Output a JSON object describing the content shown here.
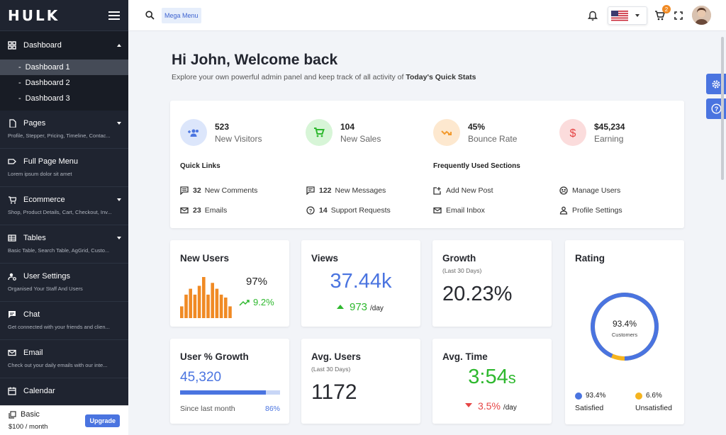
{
  "brand": {
    "logo": "HULK"
  },
  "sidebar": {
    "dashboard": {
      "label": "Dashboard",
      "items": [
        "Dashboard 1",
        "Dashboard 2",
        "Dashboard 3"
      ],
      "dash": "-"
    },
    "sections": [
      {
        "label": "Pages",
        "desc": "Profile, Stepper, Pricing, Timeline, Contac...",
        "icon": "page-icon",
        "caret": true
      },
      {
        "label": "Full Page Menu",
        "desc": "Lorem ipsum dolor sit amet",
        "icon": "label-icon",
        "caret": false
      },
      {
        "label": "Ecommerce",
        "desc": "Shop, Product Details, Cart, Checkout, Inv...",
        "icon": "cart-icon",
        "caret": true
      },
      {
        "label": "Tables",
        "desc": "Basic Table, Search Table, AgGrid, Custo...",
        "icon": "table-icon",
        "caret": true
      },
      {
        "label": "User Settings",
        "desc": "Organised Your Staff And Users",
        "icon": "user-settings-icon",
        "caret": false
      },
      {
        "label": "Chat",
        "desc": "Get connected with your friends and clien...",
        "icon": "chat-icon",
        "caret": false
      },
      {
        "label": "Email",
        "desc": "Check out your daily emails with our inte...",
        "icon": "email-icon",
        "caret": false
      },
      {
        "label": "Calendar",
        "desc": "",
        "icon": "calendar-icon",
        "caret": false
      }
    ],
    "plan": {
      "name": "Basic",
      "price": "$100 / month",
      "upgrade": "Upgrade"
    }
  },
  "header": {
    "mega_menu": "Mega Menu",
    "cart_badge": "2",
    "language_flag": "us-flag-icon"
  },
  "welcome": {
    "title": "Hi John, Welcome back",
    "subtitle": "Explore your own powerful admin panel and keep track of all activity of ",
    "subtitle_bold": "Today's Quick Stats"
  },
  "stats": [
    {
      "value": "523",
      "label": "New Visitors",
      "icon": "group-add-icon",
      "color": "#4a74e0",
      "bg": "#dce6fb"
    },
    {
      "value": "104",
      "label": "New Sales",
      "icon": "cart-icon",
      "color": "#2eb82e",
      "bg": "#d7f5d7"
    },
    {
      "value": "45%",
      "label": "Bounce Rate",
      "icon": "trend-icon",
      "color": "#f29a2e",
      "bg": "#fde8cf"
    },
    {
      "value": "$45,234",
      "label": "Earning",
      "icon": "dollar-icon",
      "color": "#e64545",
      "bg": "#fbdcdc"
    }
  ],
  "quick_links": {
    "title": "Quick Links",
    "items": [
      {
        "count": "32",
        "label": "New Comments",
        "icon": "comment-icon"
      },
      {
        "count": "122",
        "label": "New Messages",
        "icon": "message-icon"
      },
      {
        "count": "23",
        "label": "Emails",
        "icon": "email-icon"
      },
      {
        "count": "14",
        "label": "Support Requests",
        "icon": "help-icon"
      }
    ]
  },
  "frequent": {
    "title": "Frequently Used Sections",
    "items": [
      {
        "label": "Add New Post",
        "icon": "add-post-icon"
      },
      {
        "label": "Manage Users",
        "icon": "users-icon"
      },
      {
        "label": "Email Inbox",
        "icon": "email-icon"
      },
      {
        "label": "Profile Settings",
        "icon": "profile-icon"
      }
    ]
  },
  "new_users": {
    "title": "New Users",
    "percent": "97%",
    "change": "9.2%",
    "color": "#f08a24",
    "bars": [
      4,
      8,
      10,
      8,
      11,
      14,
      8,
      12,
      10,
      8,
      7,
      4
    ]
  },
  "views": {
    "title": "Views",
    "value": "37.44k",
    "change": "973",
    "unit": "/day"
  },
  "growth": {
    "title": "Growth",
    "subtitle": "(Last 30 Days)",
    "value": "20.23%"
  },
  "rating": {
    "title": "Rating",
    "value": "93.4%",
    "label": "Customers",
    "satisfied_pct": 93.4,
    "legend": [
      {
        "value": "93.4%",
        "label": "Satisfied",
        "color": "#4a74e0"
      },
      {
        "value": "6.6%",
        "label": "Unsatisfied",
        "color": "#f5b41f"
      }
    ]
  },
  "user_growth": {
    "title": "User % Growth",
    "value": "45,320",
    "progress": 0.86,
    "footer": "Since last month",
    "percent": "86%"
  },
  "avg_users": {
    "title": "Avg. Users",
    "subtitle": "(Last 30 Days)",
    "value": "1172"
  },
  "avg_time": {
    "title": "Avg. Time",
    "value": "3:54",
    "value_suffix": "s",
    "change": "3.5%",
    "unit": "/day"
  }
}
